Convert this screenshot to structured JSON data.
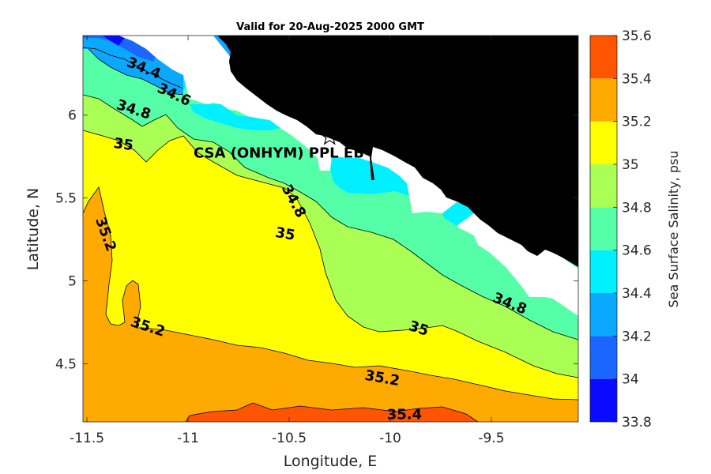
{
  "chart_data": {
    "type": "heatmap",
    "title": "Valid for 20-Aug-2025 2000 GMT",
    "xlabel": "Longitude, E",
    "ylabel": "Latitude, N",
    "xlim": [
      -11.52,
      -9.07
    ],
    "ylim": [
      4.15,
      6.48
    ],
    "x_ticks": [
      -11.5,
      -11,
      -10.5,
      -10,
      -9.5
    ],
    "x_tick_labels": [
      "-11.5",
      "-11",
      "-10.5",
      "-10",
      "-9.5"
    ],
    "y_ticks": [
      4.5,
      5,
      5.5,
      6
    ],
    "y_tick_labels": [
      "4.5",
      "5",
      "5.5",
      "6"
    ],
    "colorbar": {
      "label": "Sea Surface Salinity, psu",
      "levels": [
        33.8,
        34.0,
        34.2,
        34.4,
        34.6,
        34.8,
        35.0,
        35.2,
        35.4,
        35.6
      ],
      "tick_labels": [
        "33.8",
        "34",
        "34.2",
        "34.4",
        "34.6",
        "34.8",
        "35",
        "35.2",
        "35.4",
        "35.6"
      ],
      "colors": [
        "#0a0aff",
        "#1a66ff",
        "#0aa8ff",
        "#00f0ff",
        "#55ffa8",
        "#aaff55",
        "#ffff00",
        "#ffaa00",
        "#ff5500"
      ]
    },
    "land_color": "#000000",
    "no_data_color": "#ffffff",
    "contour_labels": [
      {
        "text": "34.4",
        "lon": -11.22,
        "lat": 6.28,
        "rot": 22
      },
      {
        "text": "34.6",
        "lon": -11.07,
        "lat": 6.12,
        "rot": 25
      },
      {
        "text": "34.8",
        "lon": -11.27,
        "lat": 6.03,
        "rot": 18
      },
      {
        "text": "35",
        "lon": -11.32,
        "lat": 5.82,
        "rot": 8
      },
      {
        "text": "34.8",
        "lon": -10.48,
        "lat": 5.48,
        "rot": 62
      },
      {
        "text": "35",
        "lon": -10.52,
        "lat": 5.28,
        "rot": 10
      },
      {
        "text": "35.2",
        "lon": -11.41,
        "lat": 5.28,
        "rot": 70
      },
      {
        "text": "35.2",
        "lon": -11.2,
        "lat": 4.72,
        "rot": 18
      },
      {
        "text": "34.8",
        "lon": -9.41,
        "lat": 4.86,
        "rot": 22
      },
      {
        "text": "35",
        "lon": -9.86,
        "lat": 4.71,
        "rot": 18
      },
      {
        "text": "35.2",
        "lon": -10.04,
        "lat": 4.41,
        "rot": 10
      },
      {
        "text": "35.4",
        "lon": -9.93,
        "lat": 4.19,
        "rot": 0
      }
    ],
    "site": {
      "label": "CSA (ONHYM) PPL EB-",
      "lon": -10.3,
      "lat": 5.84
    }
  }
}
